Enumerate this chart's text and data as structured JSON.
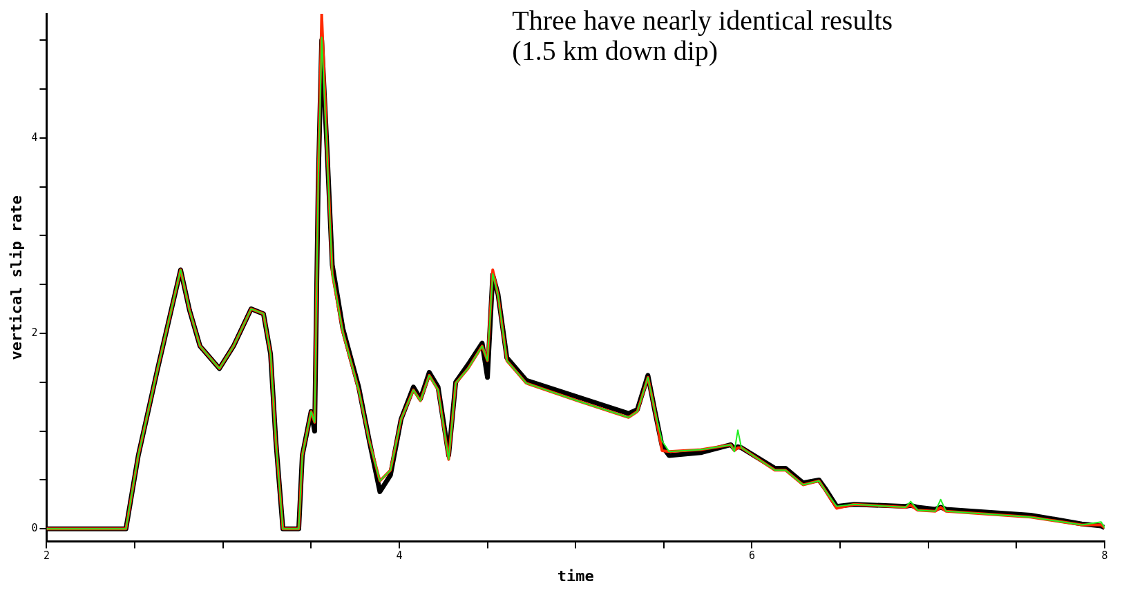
{
  "chart_data": {
    "type": "line",
    "xlabel": "time",
    "ylabel": "vertical slip rate",
    "annotations": [
      "Three have nearly identical results",
      "(1.5 km down dip)"
    ],
    "xlim": [
      2,
      8
    ],
    "ylim": [
      -0.13,
      5.27
    ],
    "xticks": [
      2,
      {
        "value": 2.5,
        "label": null
      },
      {
        "value": 3,
        "label": null
      },
      {
        "value": 3.5,
        "label": null
      },
      4,
      {
        "value": 4.5,
        "label": null
      },
      {
        "value": 5,
        "label": null
      },
      {
        "value": 5.5,
        "label": null
      },
      6,
      {
        "value": 6.5,
        "label": null
      },
      {
        "value": 7,
        "label": null
      },
      {
        "value": 7.5,
        "label": null
      },
      8
    ],
    "yticks": [
      0,
      {
        "value": 0.5,
        "label": null
      },
      {
        "value": 1,
        "label": null
      },
      {
        "value": 1.5,
        "label": null
      },
      2,
      {
        "value": 2.5,
        "label": null
      },
      {
        "value": 3,
        "label": null
      },
      {
        "value": 3.5,
        "label": null
      },
      4,
      {
        "value": 4.5,
        "label": null
      },
      {
        "value": 5,
        "label": null
      }
    ],
    "grid": false,
    "legend": false,
    "marker": "none",
    "x": [
      2,
      2.45,
      2.52,
      2.63,
      2.76,
      2.81,
      2.87,
      2.98,
      3.06,
      3.16,
      3.23,
      3.27,
      3.3,
      3.34,
      3.43,
      3.45,
      3.5,
      3.52,
      3.54,
      3.56,
      3.59,
      3.62,
      3.68,
      3.77,
      3.83,
      3.89,
      3.95,
      4.01,
      4.08,
      4.12,
      4.17,
      4.22,
      4.28,
      4.32,
      4.39,
      4.47,
      4.5,
      4.53,
      4.56,
      4.61,
      4.72,
      5.01,
      5.3,
      5.35,
      5.41,
      5.45,
      5.49,
      5.53,
      5.71,
      5.88,
      5.9,
      5.92,
      5.94,
      6.13,
      6.19,
      6.29,
      6.38,
      6.42,
      6.48,
      6.58,
      6.87,
      6.9,
      6.94,
      7.04,
      7.07,
      7.1,
      7.58,
      7.87,
      7.98,
      8
    ],
    "series": [
      {
        "color": "#000000",
        "values": [
          0,
          0,
          0.75,
          1.64,
          2.65,
          2.24,
          1.87,
          1.64,
          1.87,
          2.25,
          2.2,
          1.79,
          0.9,
          0,
          0,
          0.75,
          1.2,
          1.0,
          3.5,
          5.0,
          3.9,
          2.7,
          2.05,
          1.45,
          0.9,
          0.38,
          0.55,
          1.12,
          1.45,
          1.33,
          1.6,
          1.45,
          0.75,
          1.5,
          1.68,
          1.9,
          1.55,
          2.6,
          2.4,
          1.75,
          1.52,
          1.35,
          1.18,
          1.22,
          1.57,
          1.2,
          0.85,
          0.75,
          0.78,
          0.86,
          0.82,
          0.84,
          0.83,
          0.62,
          0.62,
          0.47,
          0.5,
          0.4,
          0.23,
          0.25,
          0.23,
          0.24,
          0.22,
          0.2,
          0.22,
          0.2,
          0.14,
          0.05,
          0.03,
          0.01
        ]
      },
      {
        "color": "#ff2a00",
        "values": [
          0,
          0,
          0.75,
          1.64,
          2.65,
          2.24,
          1.87,
          1.64,
          1.87,
          2.25,
          2.2,
          1.79,
          0.9,
          0,
          0,
          0.75,
          1.2,
          1.09,
          3.6,
          5.27,
          3.9,
          2.61,
          2.01,
          1.42,
          0.9,
          0.49,
          0.6,
          1.12,
          1.42,
          1.31,
          1.57,
          1.42,
          0.71,
          1.49,
          1.64,
          1.87,
          1.72,
          2.65,
          2.39,
          1.72,
          1.49,
          1.31,
          1.14,
          1.2,
          1.55,
          1.2,
          0.8,
          0.79,
          0.81,
          0.86,
          0.8,
          0.83,
          0.83,
          0.6,
          0.6,
          0.45,
          0.49,
          0.38,
          0.21,
          0.25,
          0.22,
          0.24,
          0.19,
          0.18,
          0.22,
          0.18,
          0.12,
          0.04,
          0.04,
          0.01
        ]
      },
      {
        "color": "#22ee22",
        "values": [
          0,
          0,
          0.75,
          1.64,
          2.65,
          2.24,
          1.87,
          1.64,
          1.87,
          2.25,
          2.2,
          1.79,
          0.9,
          0,
          0,
          0.75,
          1.2,
          1.09,
          3.5,
          5.03,
          3.87,
          2.61,
          2.01,
          1.42,
          0.9,
          0.49,
          0.6,
          1.12,
          1.42,
          1.31,
          1.57,
          1.42,
          0.71,
          1.49,
          1.64,
          1.87,
          1.72,
          2.61,
          2.39,
          1.72,
          1.49,
          1.31,
          1.14,
          1.2,
          1.55,
          1.2,
          0.9,
          0.79,
          0.81,
          0.86,
          0.79,
          1.01,
          0.83,
          0.6,
          0.6,
          0.45,
          0.49,
          0.38,
          0.23,
          0.25,
          0.22,
          0.28,
          0.19,
          0.18,
          0.3,
          0.18,
          0.12,
          0.04,
          0.07,
          0.01
        ]
      }
    ]
  }
}
